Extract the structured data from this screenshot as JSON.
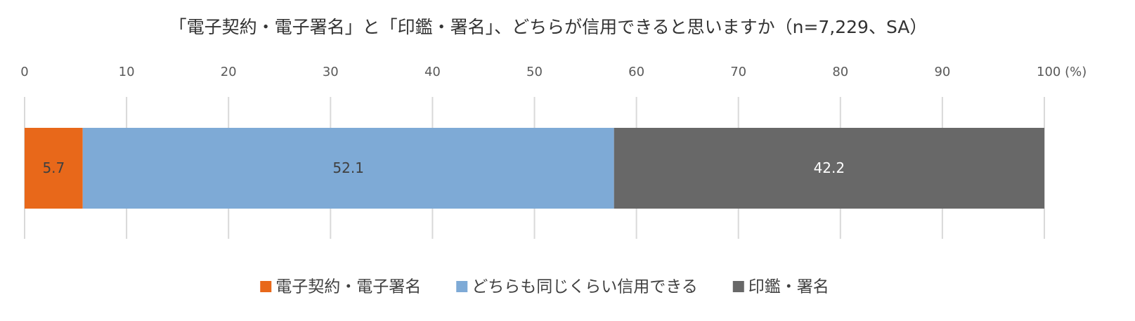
{
  "chart_data": {
    "type": "bar",
    "orientation": "horizontal",
    "stacked": true,
    "title": "「電子契約・電子署名」と「印鑑・署名」、どちらが信用できると思いますか（n=7,229、SA）",
    "categories": [
      null
    ],
    "series": [
      {
        "name": "電子契約・電子署名",
        "color": "#e8681a",
        "values": [
          5.7
        ]
      },
      {
        "name": "どちらも同じくらい信用できる",
        "color": "#7eaad6",
        "values": [
          52.1
        ]
      },
      {
        "name": "印鑑・署名",
        "color": "#686868",
        "values": [
          42.2
        ]
      }
    ],
    "xlim": [
      0,
      100
    ],
    "xticks": [
      0,
      10,
      20,
      30,
      40,
      50,
      60,
      70,
      80,
      90,
      {
        "value": 100,
        "label": "100 (%)"
      }
    ],
    "grid": true,
    "legend": "bottom"
  }
}
